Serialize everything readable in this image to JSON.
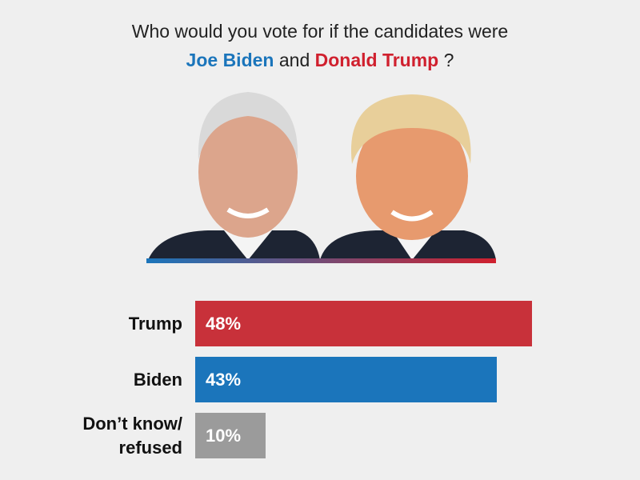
{
  "chart_data": {
    "type": "bar",
    "orientation": "horizontal",
    "title": {
      "line1": "Who would you vote for if the candidates were",
      "name1": "Joe Biden",
      "joiner": "and",
      "name2": "Donald Trump",
      "end": "?"
    },
    "categories": [
      "Trump",
      "Biden",
      "Don’t know/ refused"
    ],
    "values": [
      48,
      43,
      10
    ],
    "value_labels": [
      "48%",
      "43%",
      "10%"
    ],
    "colors": [
      "#c8313a",
      "#1b75bb",
      "#9b9b9b"
    ]
  }
}
